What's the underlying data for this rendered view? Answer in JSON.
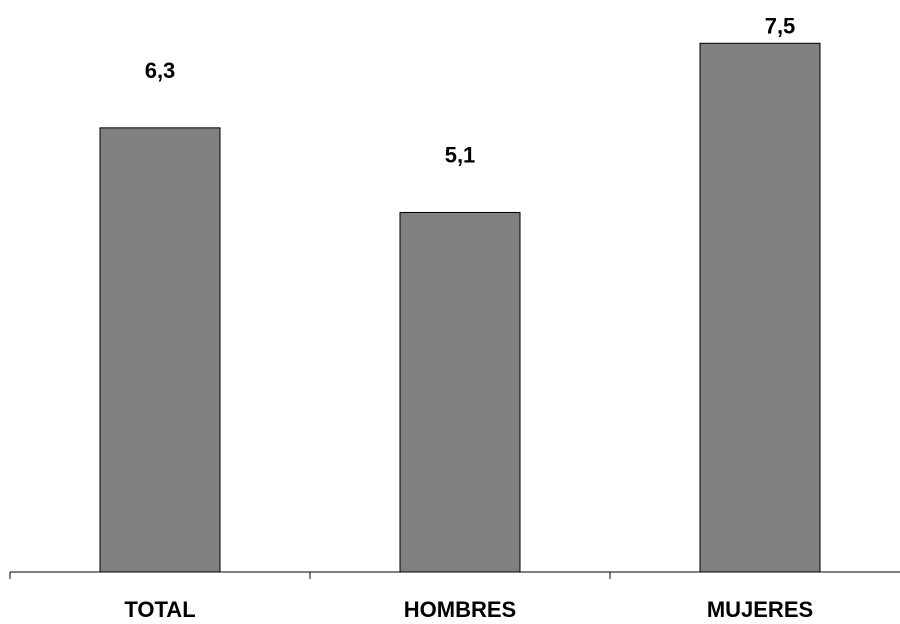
{
  "chart_data": {
    "type": "bar",
    "categories": [
      "TOTAL",
      "HOMBRES",
      "MUJERES"
    ],
    "values": [
      6.3,
      5.1,
      7.5
    ],
    "value_labels": [
      "6,3",
      "5,1",
      "7,5"
    ],
    "title": "",
    "xlabel": "",
    "ylabel": "",
    "ylim": [
      0,
      8
    ],
    "grid": false,
    "legend": "none",
    "bar_color": "#808080",
    "bar_edge_color": "#000000"
  }
}
